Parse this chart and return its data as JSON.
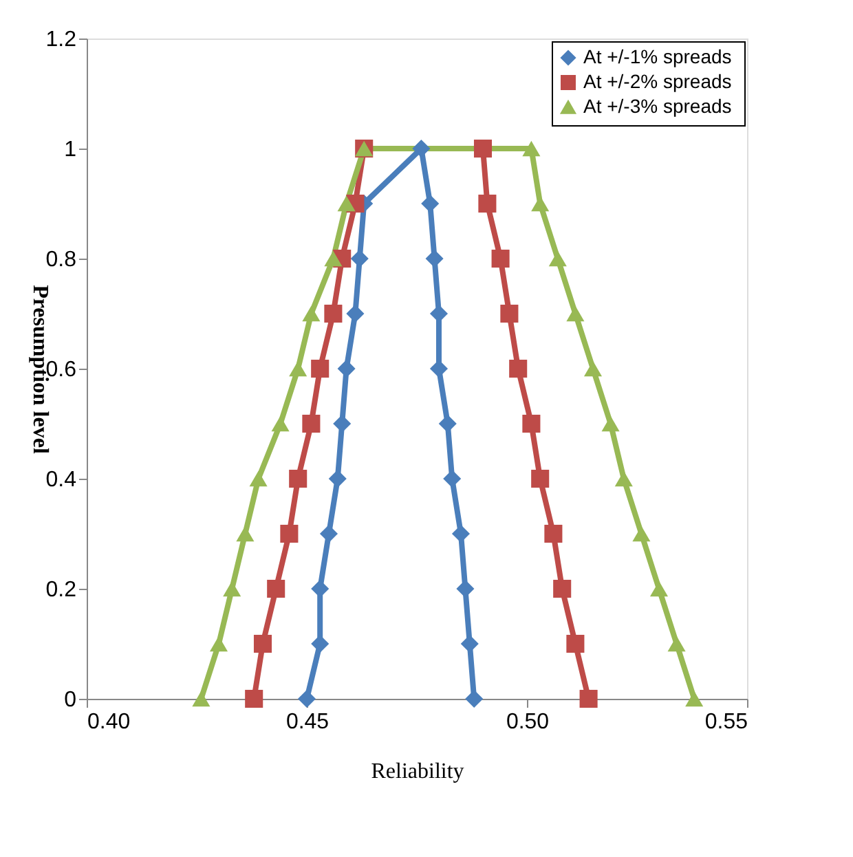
{
  "chart_data": {
    "type": "line",
    "xlabel": "Reliability",
    "ylabel": "Presumption level",
    "xlim": [
      0.4,
      0.55
    ],
    "xticks": [
      {
        "value": 0.4,
        "label": "0.40"
      },
      {
        "value": 0.45,
        "label": "0.45"
      },
      {
        "value": 0.5,
        "label": "0.50"
      },
      {
        "value": 0.55,
        "label": "0.55"
      }
    ],
    "ylim": [
      0,
      1.2
    ],
    "yticks": [
      0,
      0.2,
      0.4,
      0.6,
      0.8,
      1,
      1.2
    ],
    "grid": false,
    "legend": "top right",
    "line_style": "solid",
    "series": [
      {
        "name": "At +/-1%  spreads",
        "color": "#4a7ebb",
        "marker": "diamond",
        "x": [
          0.45,
          0.453,
          0.453,
          0.455,
          0.457,
          0.458,
          0.459,
          0.461,
          0.462,
          0.463,
          0.476,
          0.478,
          0.479,
          0.48,
          0.48,
          0.482,
          0.483,
          0.485,
          0.486,
          0.487,
          0.488
        ],
        "values": [
          0,
          0.1,
          0.2,
          0.3,
          0.4,
          0.5,
          0.6,
          0.7,
          0.8,
          0.9,
          1,
          0.9,
          0.8,
          0.7,
          0.6,
          0.5,
          0.4,
          0.3,
          0.2,
          0.1,
          0
        ]
      },
      {
        "name": "At +/-2% spreads",
        "color": "#be4b48",
        "marker": "square",
        "x": [
          0.438,
          0.44,
          0.443,
          0.446,
          0.448,
          0.451,
          0.453,
          0.456,
          0.458,
          0.461,
          0.463,
          0.49,
          0.491,
          0.494,
          0.496,
          0.498,
          0.501,
          0.503,
          0.506,
          0.508,
          0.511,
          0.514
        ],
        "values": [
          0,
          0.1,
          0.2,
          0.3,
          0.4,
          0.5,
          0.6,
          0.7,
          0.8,
          0.9,
          1,
          1,
          0.9,
          0.8,
          0.7,
          0.6,
          0.5,
          0.4,
          0.3,
          0.2,
          0.1,
          0
        ]
      },
      {
        "name": "At +/-3% spreads",
        "color": "#98b954",
        "marker": "triangle",
        "x": [
          0.426,
          0.43,
          0.433,
          0.436,
          0.439,
          0.444,
          0.448,
          0.451,
          0.456,
          0.459,
          0.463,
          0.501,
          0.503,
          0.507,
          0.511,
          0.515,
          0.519,
          0.522,
          0.526,
          0.53,
          0.534,
          0.538
        ],
        "values": [
          0,
          0.1,
          0.2,
          0.3,
          0.4,
          0.5,
          0.6,
          0.7,
          0.8,
          0.9,
          1,
          1,
          0.9,
          0.8,
          0.7,
          0.6,
          0.5,
          0.4,
          0.3,
          0.2,
          0.1,
          0
        ]
      }
    ]
  }
}
